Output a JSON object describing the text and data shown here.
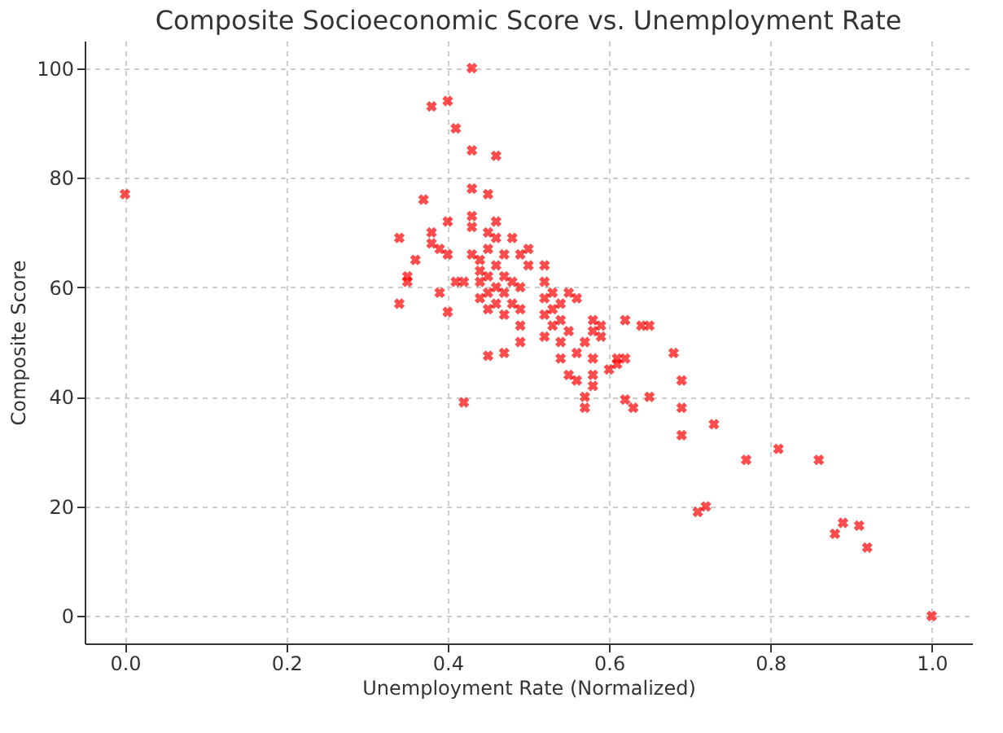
{
  "chart_data": {
    "type": "scatter",
    "title": "Composite Socioeconomic Score vs. Unemployment Rate",
    "xlabel": "Unemployment Rate (Normalized)",
    "ylabel": "Composite Score",
    "xlim": [
      -0.05,
      1.05
    ],
    "xticks": [
      {
        "value": 0,
        "label": "0.0"
      },
      0.2,
      0.4,
      0.6,
      0.8,
      {
        "value": 1,
        "label": "1.0"
      }
    ],
    "ylim": [
      -5,
      105
    ],
    "yticks": [
      0,
      20,
      40,
      60,
      80,
      100
    ],
    "grid": true,
    "marker": "cross",
    "series": [
      {
        "color": "#ff0000",
        "x": [
          0,
          0.34,
          0.34,
          0.35,
          0.35,
          0.37,
          0.36,
          0.38,
          0.4,
          0.41,
          0.43,
          0.43,
          0.46,
          0.38,
          0.38,
          0.39,
          0.39,
          0.4,
          0.4,
          0.4,
          0.41,
          0.42,
          0.42,
          0.43,
          0.43,
          0.43,
          0.43,
          0.44,
          0.44,
          0.44,
          0.44,
          0.45,
          0.45,
          0.45,
          0.45,
          0.45,
          0.45,
          0.45,
          0.46,
          0.46,
          0.46,
          0.46,
          0.46,
          0.47,
          0.47,
          0.47,
          0.47,
          0.47,
          0.48,
          0.48,
          0.48,
          0.49,
          0.49,
          0.49,
          0.49,
          0.49,
          0.5,
          0.5,
          0.52,
          0.52,
          0.52,
          0.52,
          0.52,
          0.53,
          0.53,
          0.53,
          0.54,
          0.54,
          0.54,
          0.54,
          0.55,
          0.55,
          0.55,
          0.56,
          0.56,
          0.56,
          0.57,
          0.57,
          0.57,
          0.58,
          0.58,
          0.58,
          0.58,
          0.58,
          0.59,
          0.59,
          0.6,
          0.61,
          0.61,
          0.62,
          0.62,
          0.62,
          0.63,
          0.64,
          0.65,
          0.65,
          0.68,
          0.69,
          0.69,
          0.69,
          0.71,
          0.72,
          0.73,
          0.77,
          0.81,
          0.86,
          0.88,
          0.89,
          0.91,
          0.92,
          1.0
        ],
        "values": [
          77,
          69,
          57,
          62,
          61,
          76,
          65,
          93,
          94,
          89,
          100,
          85,
          84,
          70,
          68,
          67,
          59,
          72,
          66,
          55.5,
          61,
          61,
          39,
          78,
          73,
          71,
          66,
          65,
          63,
          61,
          58,
          77,
          70,
          67,
          62,
          59,
          56,
          47.5,
          72,
          69,
          64,
          60,
          57,
          66,
          62,
          59,
          55,
          48,
          69,
          61,
          57,
          66,
          60,
          56,
          53,
          50,
          67,
          64,
          64,
          61,
          58,
          55,
          51,
          59,
          56,
          53,
          57,
          54,
          50,
          47,
          59,
          52,
          44,
          58,
          48,
          43,
          50,
          40,
          38,
          54,
          52,
          47,
          44,
          42,
          51,
          53,
          45,
          47,
          46,
          54,
          39.5,
          47,
          38,
          53,
          53,
          40,
          48,
          43,
          38,
          33,
          19,
          20,
          35,
          28.5,
          30.5,
          28.5,
          15,
          17,
          16.5,
          12.5,
          0
        ]
      }
    ]
  }
}
